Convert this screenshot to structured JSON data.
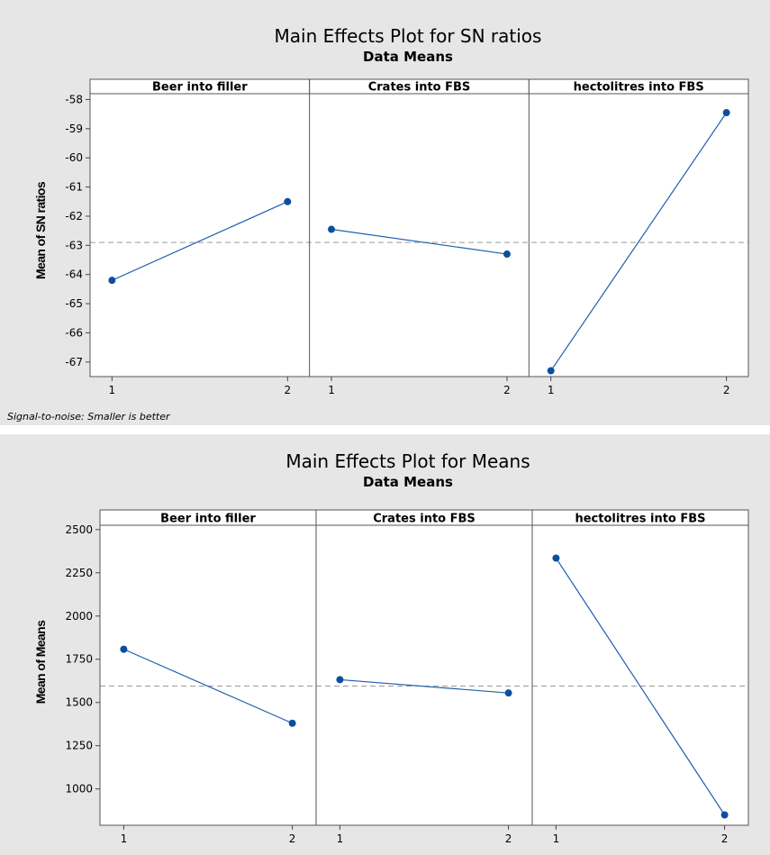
{
  "chart_data": [
    {
      "type": "line",
      "title": "Main Effects Plot for SN ratios",
      "subtitle": "Data Means",
      "ylabel": "Mean of SN ratios",
      "ylim": [
        -67.5,
        -57.8
      ],
      "yticks": [
        -58,
        -59,
        -60,
        -61,
        -62,
        -63,
        -64,
        -65,
        -66,
        -67
      ],
      "reference_line": -62.9,
      "footnote": "Signal-to-noise: Smaller is better",
      "panels": [
        {
          "label": "Beer into filler",
          "x": [
            "1",
            "2"
          ],
          "values": [
            -64.2,
            -61.5
          ]
        },
        {
          "label": "Crates into FBS",
          "x": [
            "1",
            "2"
          ],
          "values": [
            -62.45,
            -63.3
          ]
        },
        {
          "label": "hectolitres into FBS",
          "x": [
            "1",
            "2"
          ],
          "values": [
            -67.3,
            -58.45
          ]
        }
      ],
      "grid": false
    },
    {
      "type": "line",
      "title": "Main Effects Plot for Means",
      "subtitle": "Data Means",
      "ylabel": "Mean of Means",
      "ylim": [
        790,
        2525
      ],
      "yticks": [
        2500,
        2250,
        2000,
        1750,
        1500,
        1250,
        1000
      ],
      "reference_line": 1595,
      "panels": [
        {
          "label": "Beer into filler",
          "x": [
            "1",
            "2"
          ],
          "values": [
            1808,
            1380
          ]
        },
        {
          "label": "Crates into FBS",
          "x": [
            "1",
            "2"
          ],
          "values": [
            1632,
            1555
          ]
        },
        {
          "label": "hectolitres into FBS",
          "x": [
            "1",
            "2"
          ],
          "values": [
            2335,
            850
          ]
        }
      ],
      "grid": false
    }
  ],
  "colors": {
    "line": "#1f5fae",
    "marker": "#0b4f9c",
    "reference": "#9a9a9a",
    "panel_bg": "#ffffff",
    "figure_bg": "#e6e6e6"
  }
}
